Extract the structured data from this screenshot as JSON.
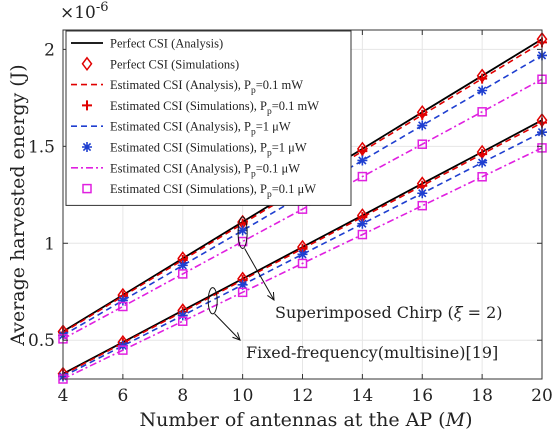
{
  "chart_data": {
    "type": "line",
    "xlabel": "Number of antennas at the AP (M)",
    "ylabel": "Average harvested energy (J)",
    "y_scale_label": "×10",
    "y_scale_exp": "-6",
    "xlim": [
      4,
      20
    ],
    "ylim": [
      0.3,
      2.1
    ],
    "x_ticks": [
      4,
      6,
      8,
      10,
      12,
      14,
      16,
      18,
      20
    ],
    "y_ticks": [
      0.5,
      1,
      1.5,
      2
    ],
    "y_tick_labels": [
      "0.5",
      "1",
      "1.5",
      "2"
    ],
    "grid": true,
    "legend_position": "top-left",
    "x": [
      4,
      6,
      8,
      10,
      12,
      14,
      16,
      18,
      20
    ],
    "series": [
      {
        "name": "Perfect CSI (Analysis)",
        "group": "chirp",
        "style": "solid",
        "color": "#000000",
        "values": [
          0.545,
          0.733,
          0.922,
          1.11,
          1.299,
          1.487,
          1.676,
          1.864,
          2.053
        ]
      },
      {
        "name": "Perfect CSI (Simulations)",
        "group": "chirp",
        "style": "marker",
        "marker": "diamond",
        "color": "#e00000",
        "values": [
          0.545,
          0.733,
          0.922,
          1.11,
          1.299,
          1.487,
          1.676,
          1.864,
          2.053
        ]
      },
      {
        "name": "Estimated CSI (Analysis), P_p=0.1 mW",
        "group": "chirp",
        "style": "dashed",
        "color": "#e00000",
        "values": [
          0.54,
          0.727,
          0.914,
          1.101,
          1.288,
          1.475,
          1.662,
          1.849,
          2.036
        ]
      },
      {
        "name": "Estimated CSI (Simulations), P_p=0.1 mW",
        "group": "chirp",
        "style": "marker",
        "marker": "plus",
        "color": "#e00000",
        "values": [
          0.54,
          0.727,
          0.914,
          1.101,
          1.288,
          1.475,
          1.662,
          1.849,
          2.036
        ]
      },
      {
        "name": "Estimated CSI (Analysis), P_p=1 μW",
        "group": "chirp",
        "style": "dashed",
        "color": "#1f3fd0",
        "values": [
          0.525,
          0.705,
          0.886,
          1.066,
          1.247,
          1.427,
          1.608,
          1.788,
          1.969
        ]
      },
      {
        "name": "Estimated CSI (Simulations), P_p=1 μW",
        "group": "chirp",
        "style": "marker",
        "marker": "asterisk",
        "color": "#1f3fd0",
        "values": [
          0.525,
          0.705,
          0.886,
          1.066,
          1.247,
          1.427,
          1.608,
          1.788,
          1.969
        ]
      },
      {
        "name": "Estimated CSI (Analysis), P_p=0.1 μW",
        "group": "chirp",
        "style": "dashdot",
        "color": "#e020e0",
        "values": [
          0.507,
          0.674,
          0.842,
          1.009,
          1.176,
          1.344,
          1.511,
          1.678,
          1.846
        ]
      },
      {
        "name": "Estimated CSI (Simulations), P_p=0.1 μW",
        "group": "chirp",
        "style": "marker",
        "marker": "square",
        "color": "#e020e0",
        "values": [
          0.507,
          0.674,
          0.842,
          1.009,
          1.176,
          1.344,
          1.511,
          1.678,
          1.846
        ]
      },
      {
        "name": "Perfect CSI (Analysis)",
        "group": "multisine",
        "style": "solid",
        "color": "#000000",
        "values": [
          0.327,
          0.49,
          0.654,
          0.817,
          0.981,
          1.144,
          1.308,
          1.471,
          1.635
        ]
      },
      {
        "name": "Perfect CSI (Simulations)",
        "group": "multisine",
        "style": "marker",
        "marker": "diamond",
        "color": "#e00000",
        "values": [
          0.327,
          0.49,
          0.654,
          0.817,
          0.981,
          1.144,
          1.308,
          1.471,
          1.635
        ]
      },
      {
        "name": "Estimated CSI (Analysis), P_p=0.1 mW",
        "group": "multisine",
        "style": "dashed",
        "color": "#e00000",
        "values": [
          0.322,
          0.485,
          0.647,
          0.81,
          0.972,
          1.135,
          1.297,
          1.46,
          1.622
        ]
      },
      {
        "name": "Estimated CSI (Simulations), P_p=0.1 mW",
        "group": "multisine",
        "style": "marker",
        "marker": "plus",
        "color": "#e00000",
        "values": [
          0.322,
          0.485,
          0.647,
          0.81,
          0.972,
          1.135,
          1.297,
          1.46,
          1.622
        ]
      },
      {
        "name": "Estimated CSI (Analysis), P_p=1 μW",
        "group": "multisine",
        "style": "dashed",
        "color": "#1f3fd0",
        "values": [
          0.313,
          0.471,
          0.628,
          0.786,
          0.943,
          1.101,
          1.258,
          1.416,
          1.573
        ]
      },
      {
        "name": "Estimated CSI (Simulations), P_p=1 μW",
        "group": "multisine",
        "style": "marker",
        "marker": "asterisk",
        "color": "#1f3fd0",
        "values": [
          0.313,
          0.471,
          0.628,
          0.786,
          0.943,
          1.101,
          1.258,
          1.416,
          1.573
        ]
      },
      {
        "name": "Estimated CSI (Analysis), P_p=0.1 μW",
        "group": "multisine",
        "style": "dashdot",
        "color": "#e020e0",
        "values": [
          0.3,
          0.449,
          0.598,
          0.747,
          0.896,
          1.045,
          1.194,
          1.343,
          1.492
        ]
      },
      {
        "name": "Estimated CSI (Simulations), P_p=0.1 μW",
        "group": "multisine",
        "style": "marker",
        "marker": "square",
        "color": "#e020e0",
        "values": [
          0.3,
          0.449,
          0.598,
          0.747,
          0.896,
          1.045,
          1.194,
          1.343,
          1.492
        ]
      }
    ],
    "legend": [
      {
        "text": "Perfect CSI (Analysis)",
        "style": "solid",
        "color": "#000000"
      },
      {
        "text": "Perfect CSI (Simulations)",
        "style": "marker",
        "marker": "diamond",
        "color": "#e00000"
      },
      {
        "text": "Estimated CSI (Analysis), P",
        "sub": "p",
        "tail": "=0.1 mW",
        "style": "dashed",
        "color": "#e00000"
      },
      {
        "text": "Estimated CSI (Simulations), P",
        "sub": "p",
        "tail": "=0.1 mW",
        "style": "marker",
        "marker": "plus",
        "color": "#e00000"
      },
      {
        "text": "Estimated CSI (Analysis), P",
        "sub": "p",
        "tail": "=1 μW",
        "style": "dashed",
        "color": "#1f3fd0"
      },
      {
        "text": "Estimated CSI (Simulations), P",
        "sub": "p",
        "tail": "=1 μW",
        "style": "marker",
        "marker": "asterisk",
        "color": "#1f3fd0"
      },
      {
        "text": "Estimated CSI (Analysis), P",
        "sub": "p",
        "tail": "=0.1 μW",
        "style": "dashdot",
        "color": "#e020e0"
      },
      {
        "text": "Estimated CSI (Simulations), P",
        "sub": "p",
        "tail": "=0.1 μW",
        "style": "marker",
        "marker": "square",
        "color": "#e020e0"
      }
    ],
    "annotations": [
      {
        "text": "Superimposed Chirp (ξ = 2)",
        "points_to_x": 10
      },
      {
        "text": "Fixed-frequency(multisine)[19]",
        "points_to_x": 9
      }
    ]
  }
}
